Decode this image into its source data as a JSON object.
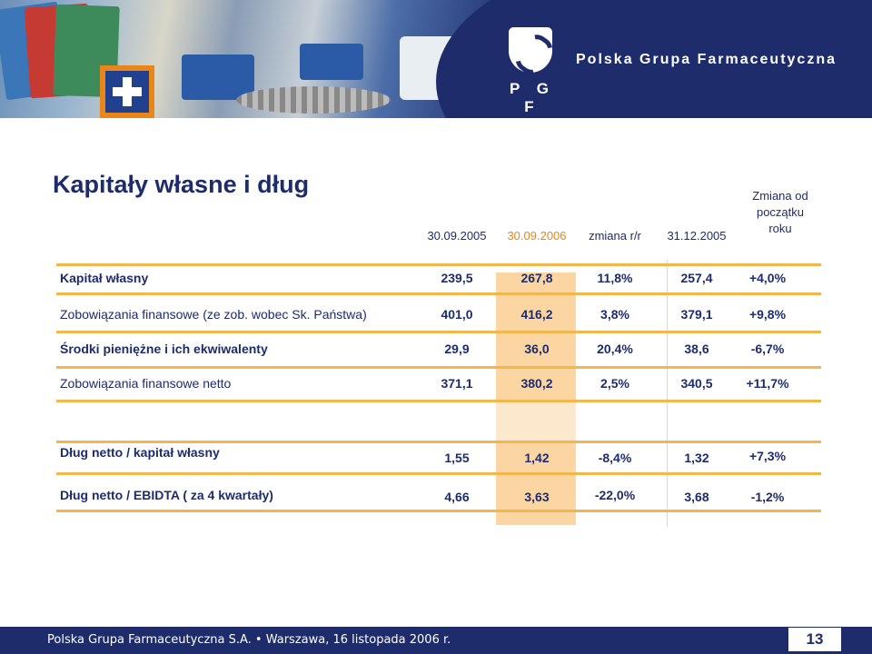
{
  "header": {
    "brand": "Polska Grupa Farmaceutyczna",
    "logo_text": "P G F"
  },
  "slide": {
    "title": "Kapitały własne i dług"
  },
  "columns": [
    "30.09.2005",
    "30.09.2006",
    "zmiana r/r",
    "31.12.2005",
    "Zmiana od początku roku"
  ],
  "rows": [
    {
      "label": "Kapitał własny",
      "values": [
        "239,5",
        "267,8",
        "11,8%",
        "257,4",
        "+4,0%"
      ]
    },
    {
      "label": "Zobowiązania finansowe (ze zob. wobec Sk. Państwa)",
      "values": [
        "401,0",
        "416,2",
        "3,8%",
        "379,1",
        "+9,8%"
      ]
    },
    {
      "label": "Środki pieniężne i ich ekwiwalenty",
      "values": [
        "29,9",
        "36,0",
        "20,4%",
        "38,6",
        "-6,7%"
      ]
    },
    {
      "label": "Zobowiązania finansowe netto",
      "values": [
        "371,1",
        "380,2",
        "2,5%",
        "340,5",
        "+11,7%"
      ]
    }
  ],
  "ratios": [
    {
      "label": "Dług netto / kapitał własny",
      "values": [
        "1,55",
        "1,42",
        "-8,4%",
        "1,32",
        "+7,3%"
      ]
    },
    {
      "label": "Dług netto / EBIDTA ( za 4 kwartały)",
      "values": [
        "4,66",
        "3,63",
        "-22,0%",
        "3,68",
        "-1,2%"
      ]
    }
  ],
  "footer": {
    "text": "Polska Grupa Farmaceutyczna S.A. • Warszawa, 16 listopada 2006 r.",
    "page_number": "13"
  },
  "colors": {
    "navy": "#1e2c6c",
    "orange": "#e8861a",
    "highlight": "#fbd6a2",
    "rule": "#f2b64c"
  }
}
